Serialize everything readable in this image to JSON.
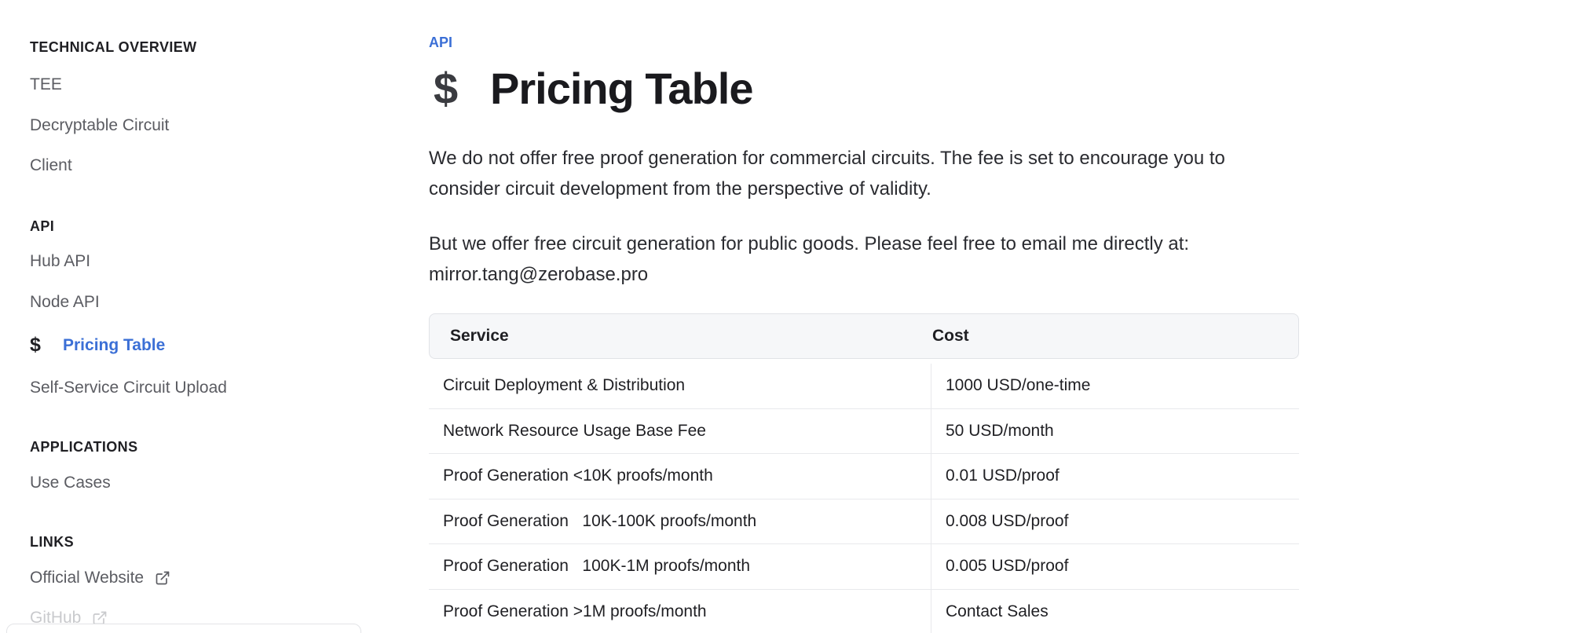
{
  "sidebar": {
    "sections": [
      {
        "heading": "TECHNICAL OVERVIEW",
        "items": [
          {
            "label": "TEE"
          },
          {
            "label": "Decryptable Circuit"
          },
          {
            "label": "Client"
          }
        ]
      },
      {
        "heading": "API",
        "items": [
          {
            "label": "Hub API"
          },
          {
            "label": "Node API"
          },
          {
            "label": "Pricing Table",
            "active": true,
            "icon": "dollar-icon"
          },
          {
            "label": "Self-Service Circuit Upload"
          }
        ]
      },
      {
        "heading": "APPLICATIONS",
        "items": [
          {
            "label": "Use Cases"
          }
        ]
      },
      {
        "heading": "LINKS",
        "items": [
          {
            "label": "Official Website",
            "icon": "external-link-icon"
          },
          {
            "label": "GitHub",
            "icon": "external-link-icon"
          }
        ]
      }
    ]
  },
  "main": {
    "eyebrow": "API",
    "title_icon": "$",
    "title": "Pricing Table",
    "paragraph1": "We do not offer free proof generation for commercial circuits. The fee is set to encourage you to consider circuit development from the perspective of validity.",
    "paragraph2": "But we offer free circuit generation for public goods. Please feel free to email me directly at: mirror.tang@zerobase.pro",
    "table": {
      "headers": {
        "service": "Service",
        "cost": "Cost"
      },
      "rows": [
        {
          "service": "Circuit Deployment & Distribution",
          "cost": "1000 USD/one-time"
        },
        {
          "service": "Network Resource Usage Base Fee",
          "cost": "50 USD/month"
        },
        {
          "service": "Proof Generation <10K proofs/month",
          "cost": "0.01 USD/proof"
        },
        {
          "service": "Proof Generation   10K-100K proofs/month",
          "cost": "0.008 USD/proof"
        },
        {
          "service": "Proof Generation   100K-1M proofs/month",
          "cost": "0.005 USD/proof"
        },
        {
          "service": "Proof Generation >1M proofs/month",
          "cost": "Contact Sales"
        }
      ]
    }
  },
  "colors": {
    "accent": "#3b6fd6",
    "text": "#1f1f23",
    "muted": "#5b5c62",
    "table_header_bg": "#f6f7f9"
  }
}
